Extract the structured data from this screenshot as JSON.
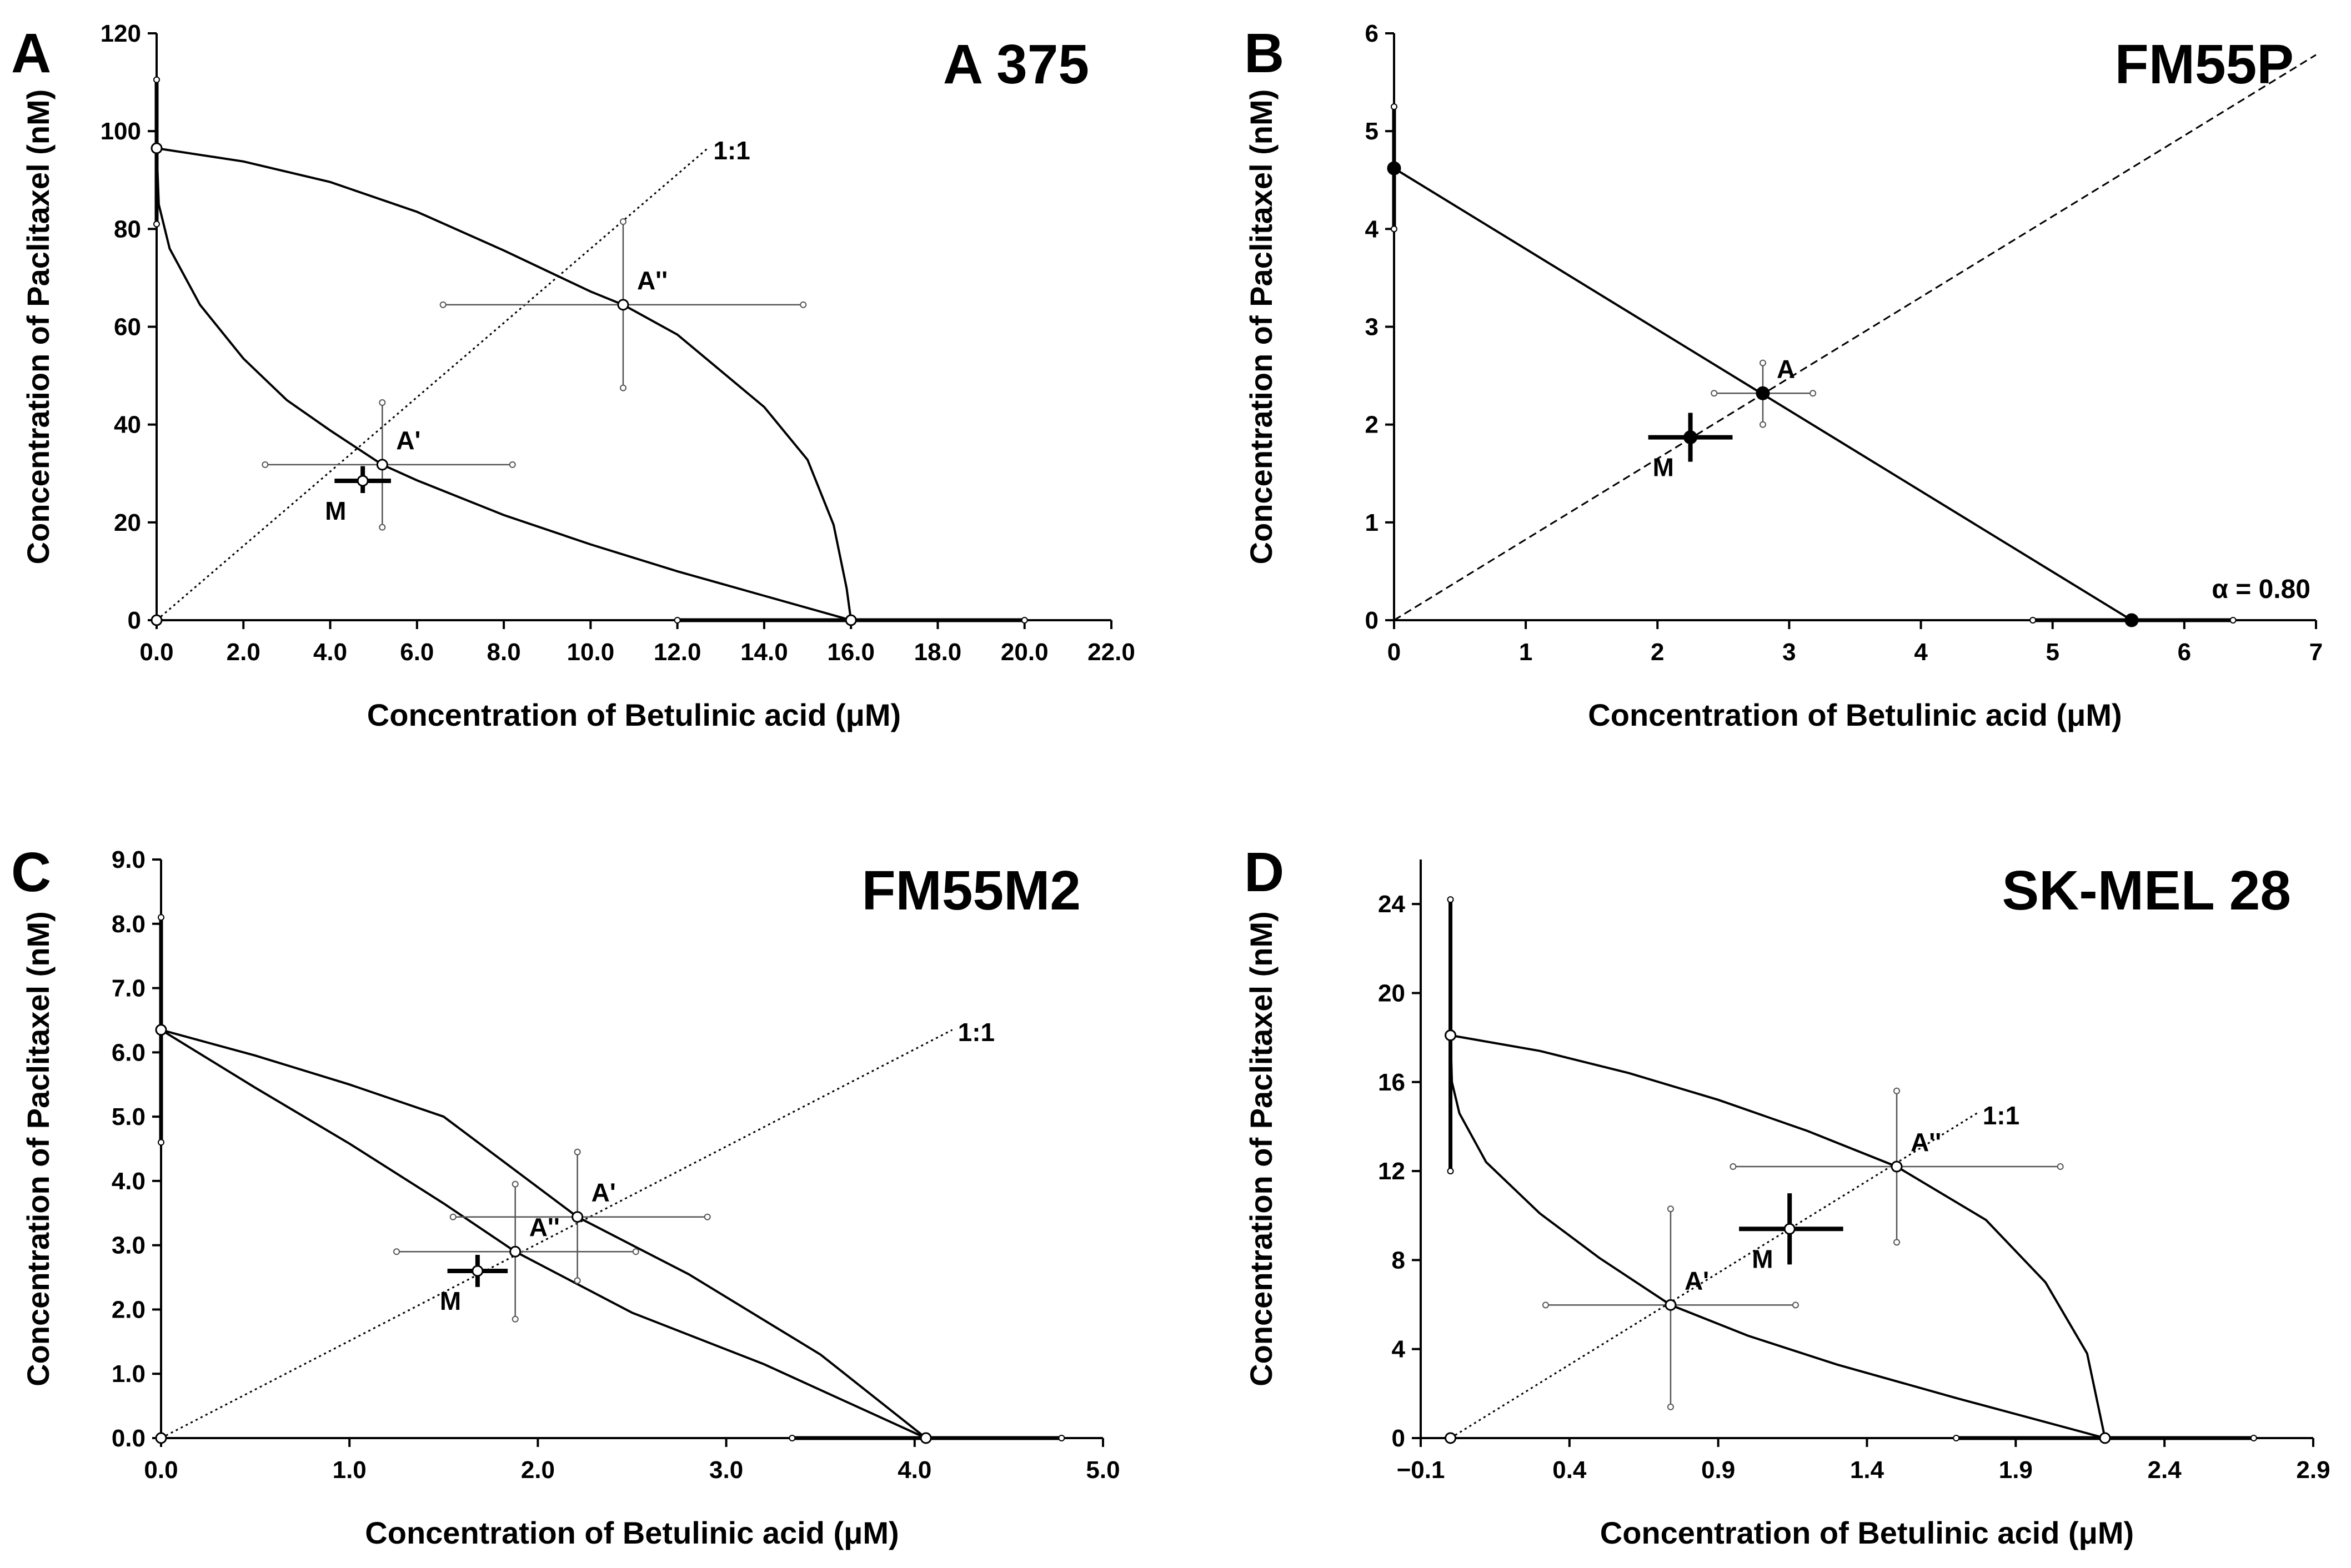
{
  "chart_data": [
    {
      "type": "scatter",
      "letter": "A",
      "title": "A 375",
      "xlabel": "Concentration of Betulinic acid (μM)",
      "ylabel": "Concentration of Paclitaxel (nM)",
      "xlim": [
        0,
        22
      ],
      "ylim": [
        0,
        120
      ],
      "xticks": [
        0,
        2,
        4,
        6,
        8,
        10,
        12,
        14,
        16,
        18,
        20,
        22
      ],
      "xtick_labels": [
        "0.0",
        "2.0",
        "4.0",
        "6.0",
        "8.0",
        "10.0",
        "12.0",
        "14.0",
        "16.0",
        "18.0",
        "20.0",
        "22.0"
      ],
      "yticks": [
        0,
        20,
        40,
        60,
        80,
        100,
        120
      ],
      "ytick_labels": [
        "0",
        "20",
        "40",
        "60",
        "80",
        "100",
        "120"
      ],
      "grid": false,
      "additivity_lines": [
        {
          "name": "upper",
          "style": "solid",
          "points": [
            [
              0,
              96.5
            ],
            [
              2,
              93.8
            ],
            [
              4,
              89.6
            ],
            [
              6,
              83.5
            ],
            [
              8,
              75.6
            ],
            [
              10,
              67.2
            ],
            [
              10.75,
              64.5
            ],
            [
              12,
              58.4
            ],
            [
              14,
              43.6
            ],
            [
              15,
              32.8
            ],
            [
              15.6,
              19.5
            ],
            [
              15.9,
              6.5
            ],
            [
              16,
              0
            ]
          ]
        },
        {
          "name": "lower",
          "style": "solid",
          "points": [
            [
              0,
              96.5
            ],
            [
              0.05,
              85
            ],
            [
              0.3,
              76
            ],
            [
              1,
              64.5
            ],
            [
              2,
              53.5
            ],
            [
              3,
              45
            ],
            [
              4,
              38.8
            ],
            [
              5.2,
              31.8
            ],
            [
              6,
              28.6
            ],
            [
              8,
              21.5
            ],
            [
              10,
              15.5
            ],
            [
              12,
              10
            ],
            [
              14,
              5
            ],
            [
              16,
              0
            ]
          ]
        }
      ],
      "ratio_line": {
        "label": "1:1",
        "style": "dotted",
        "from": [
          0,
          0
        ],
        "to": [
          12.7,
          96.5
        ]
      },
      "points": [
        {
          "label": "",
          "x": 0,
          "y": 96.5,
          "marker": "open",
          "xerr": [
            0,
            0
          ],
          "yerr": [
            81,
            110.5
          ]
        },
        {
          "label": "",
          "x": 16,
          "y": 0,
          "marker": "open",
          "xerr": [
            12,
            20
          ],
          "yerr": [
            0,
            0
          ]
        },
        {
          "label": "",
          "x": 0,
          "y": 0,
          "marker": "open",
          "xerr": [
            0,
            0
          ],
          "yerr": [
            0,
            0
          ]
        },
        {
          "label": "A''",
          "x": 10.75,
          "y": 64.5,
          "marker": "open",
          "xerr": [
            6.6,
            14.9
          ],
          "yerr": [
            47.5,
            81.5
          ]
        },
        {
          "label": "A'",
          "x": 5.2,
          "y": 31.8,
          "marker": "open",
          "xerr": [
            2.5,
            8.2
          ],
          "yerr": [
            19,
            44.5
          ]
        },
        {
          "label": "M",
          "x": 4.75,
          "y": 28.5,
          "marker": "cross",
          "xerr": [
            4.1,
            5.4
          ],
          "yerr": [
            26,
            31.5
          ]
        }
      ],
      "note": ""
    },
    {
      "type": "scatter",
      "letter": "B",
      "title": "FM55P",
      "xlabel": "Concentration of Betulinic acid (μM)",
      "ylabel": "Concentration of Paclitaxel (nM)",
      "xlim": [
        0,
        7
      ],
      "ylim": [
        0,
        6
      ],
      "xticks": [
        0,
        1,
        2,
        3,
        4,
        5,
        6,
        7
      ],
      "xtick_labels": [
        "0",
        "1",
        "2",
        "3",
        "4",
        "5",
        "6",
        "7"
      ],
      "yticks": [
        0,
        1,
        2,
        3,
        4,
        5,
        6
      ],
      "ytick_labels": [
        "0",
        "1",
        "2",
        "3",
        "4",
        "5",
        "6"
      ],
      "grid": false,
      "additivity_lines": [
        {
          "name": "additivity",
          "style": "solid",
          "points": [
            [
              0,
              4.62
            ],
            [
              5.6,
              0
            ]
          ]
        }
      ],
      "ratio_line": {
        "label": "",
        "style": "dashed",
        "from": [
          0,
          0
        ],
        "to": [
          7,
          5.78
        ]
      },
      "points": [
        {
          "label": "",
          "x": 0,
          "y": 4.62,
          "marker": "filled",
          "xerr": [
            0,
            0
          ],
          "yerr": [
            4.0,
            5.25
          ]
        },
        {
          "label": "",
          "x": 5.6,
          "y": 0,
          "marker": "filled",
          "xerr": [
            4.85,
            6.37
          ],
          "yerr": [
            0,
            0
          ]
        },
        {
          "label": "A",
          "x": 2.8,
          "y": 2.32,
          "marker": "filled",
          "xerr": [
            2.43,
            3.18
          ],
          "yerr": [
            2.0,
            2.63
          ]
        },
        {
          "label": "M",
          "x": 2.25,
          "y": 1.87,
          "marker": "filled-cross",
          "xerr": [
            1.93,
            2.57
          ],
          "yerr": [
            1.62,
            2.12
          ]
        }
      ],
      "note": "α = 0.80"
    },
    {
      "type": "scatter",
      "letter": "C",
      "title": "FM55M2",
      "xlabel": "Concentration of Betulinic acid (μM)",
      "ylabel": "Concentration of Paclitaxel (nM)",
      "xlim": [
        0,
        5
      ],
      "ylim": [
        0,
        9
      ],
      "xticks": [
        0,
        1,
        2,
        3,
        4,
        5
      ],
      "xtick_labels": [
        "0.0",
        "1.0",
        "2.0",
        "3.0",
        "4.0",
        "5.0"
      ],
      "yticks": [
        0,
        1,
        2,
        3,
        4,
        5,
        6,
        7,
        8,
        9
      ],
      "ytick_labels": [
        "0.0",
        "1.0",
        "2.0",
        "3.0",
        "4.0",
        "5.0",
        "6.0",
        "7.0",
        "8.0",
        "9.0"
      ],
      "grid": false,
      "additivity_lines": [
        {
          "name": "upper",
          "style": "solid",
          "points": [
            [
              0,
              6.35
            ],
            [
              0.5,
              5.95
            ],
            [
              1,
              5.5
            ],
            [
              1.5,
              5.0
            ],
            [
              2.21,
              3.44
            ],
            [
              2.8,
              2.55
            ],
            [
              3.5,
              1.3
            ],
            [
              4.06,
              0
            ]
          ]
        },
        {
          "name": "lower",
          "style": "solid",
          "points": [
            [
              0,
              6.35
            ],
            [
              0.5,
              5.45
            ],
            [
              1,
              4.58
            ],
            [
              1.5,
              3.65
            ],
            [
              1.88,
              2.9
            ],
            [
              2.5,
              1.95
            ],
            [
              3.2,
              1.15
            ],
            [
              4.06,
              0
            ]
          ]
        }
      ],
      "ratio_line": {
        "label": "1:1",
        "style": "dotted",
        "from": [
          0,
          0
        ],
        "to": [
          4.2,
          6.35
        ]
      },
      "points": [
        {
          "label": "",
          "x": 0,
          "y": 6.35,
          "marker": "open",
          "xerr": [
            0,
            0
          ],
          "yerr": [
            4.6,
            8.1
          ]
        },
        {
          "label": "",
          "x": 4.06,
          "y": 0,
          "marker": "open",
          "xerr": [
            3.35,
            4.78
          ],
          "yerr": [
            0,
            0
          ]
        },
        {
          "label": "",
          "x": 0,
          "y": 0,
          "marker": "open",
          "xerr": [
            0,
            0
          ],
          "yerr": [
            0,
            0
          ]
        },
        {
          "label": "A'",
          "x": 2.21,
          "y": 3.44,
          "marker": "open",
          "xerr": [
            1.55,
            2.9
          ],
          "yerr": [
            2.45,
            4.45
          ]
        },
        {
          "label": "A''",
          "x": 1.88,
          "y": 2.9,
          "marker": "open",
          "xerr": [
            1.25,
            2.52
          ],
          "yerr": [
            1.85,
            3.95
          ]
        },
        {
          "label": "M",
          "x": 1.68,
          "y": 2.6,
          "marker": "cross",
          "xerr": [
            1.52,
            1.84
          ],
          "yerr": [
            2.35,
            2.85
          ]
        }
      ],
      "note": ""
    },
    {
      "type": "scatter",
      "letter": "D",
      "title": "SK-MEL 28",
      "xlabel": "Concentration of Betulinic acid (μM)",
      "ylabel": "Concentration of Paclitaxel (nM)",
      "xlim": [
        -0.1,
        2.9
      ],
      "ylim": [
        0,
        26
      ],
      "xticks": [
        -0.1,
        0.4,
        0.9,
        1.4,
        1.9,
        2.4,
        2.9
      ],
      "xtick_labels": [
        "−0.1",
        "0.4",
        "0.9",
        "1.4",
        "1.9",
        "2.4",
        "2.9"
      ],
      "yticks": [
        0,
        4,
        8,
        12,
        16,
        20,
        24
      ],
      "ytick_labels": [
        "0",
        "4",
        "8",
        "12",
        "16",
        "20",
        "24"
      ],
      "grid": false,
      "additivity_lines": [
        {
          "name": "upper",
          "style": "solid",
          "points": [
            [
              0,
              18.1
            ],
            [
              0.3,
              17.4
            ],
            [
              0.6,
              16.4
            ],
            [
              0.9,
              15.2
            ],
            [
              1.2,
              13.8
            ],
            [
              1.5,
              12.2
            ],
            [
              1.8,
              9.8
            ],
            [
              2.0,
              7.0
            ],
            [
              2.14,
              3.8
            ],
            [
              2.2,
              0
            ]
          ]
        },
        {
          "name": "lower",
          "style": "solid",
          "points": [
            [
              0,
              18.1
            ],
            [
              0.005,
              16.0
            ],
            [
              0.03,
              14.6
            ],
            [
              0.12,
              12.4
            ],
            [
              0.3,
              10.1
            ],
            [
              0.5,
              8.1
            ],
            [
              0.74,
              5.98
            ],
            [
              1.0,
              4.6
            ],
            [
              1.3,
              3.3
            ],
            [
              1.7,
              1.8
            ],
            [
              2.2,
              0
            ]
          ]
        }
      ],
      "ratio_line": {
        "label": "1:1",
        "style": "dotted",
        "from": [
          0,
          0
        ],
        "to": [
          1.77,
          14.6
        ]
      },
      "points": [
        {
          "label": "",
          "x": 0,
          "y": 18.1,
          "marker": "open",
          "xerr": [
            0,
            0
          ],
          "yerr": [
            12,
            24.2
          ]
        },
        {
          "label": "",
          "x": 2.2,
          "y": 0,
          "marker": "open",
          "xerr": [
            1.7,
            2.7
          ],
          "yerr": [
            0,
            0
          ]
        },
        {
          "label": "",
          "x": 0,
          "y": 0,
          "marker": "open",
          "xerr": [
            0,
            0
          ],
          "yerr": [
            0,
            0
          ]
        },
        {
          "label": "A''",
          "x": 1.5,
          "y": 12.2,
          "marker": "open",
          "xerr": [
            0.95,
            2.05
          ],
          "yerr": [
            8.8,
            15.6
          ]
        },
        {
          "label": "A'",
          "x": 0.74,
          "y": 5.98,
          "marker": "open",
          "xerr": [
            0.32,
            1.16
          ],
          "yerr": [
            1.4,
            10.3
          ]
        },
        {
          "label": "M",
          "x": 1.14,
          "y": 9.4,
          "marker": "cross",
          "xerr": [
            0.97,
            1.32
          ],
          "yerr": [
            7.8,
            11.0
          ]
        }
      ],
      "note": ""
    }
  ]
}
